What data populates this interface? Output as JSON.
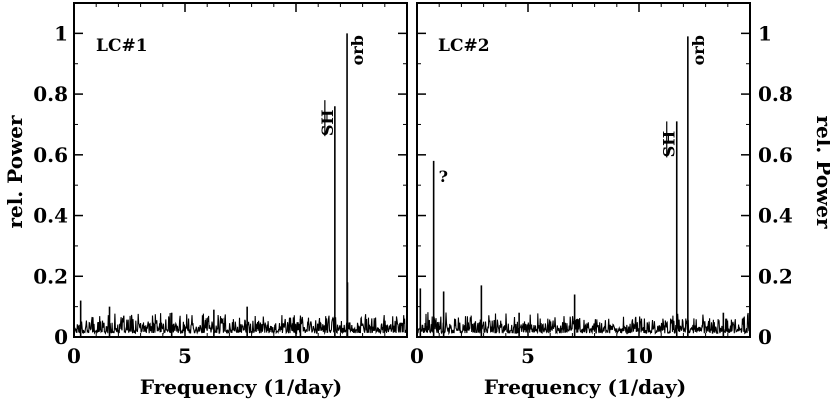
{
  "chart_data": [
    {
      "type": "line",
      "panel_label": "LC#1",
      "xlabel": "Frequency (1/day)",
      "ylabel": "rel. Power",
      "xlim": [
        0,
        15
      ],
      "ylim": [
        0,
        1.1
      ],
      "x_ticks": [
        "0",
        "5",
        "10"
      ],
      "y_ticks": [
        "0",
        "0.2",
        "0.4",
        "0.6",
        "0.8",
        "1"
      ],
      "noise_level": 0.05,
      "peaks": [
        {
          "x": 0.3,
          "y": 0.12
        },
        {
          "x": 1.6,
          "y": 0.1
        },
        {
          "x": 4.4,
          "y": 0.08
        },
        {
          "x": 6.3,
          "y": 0.09
        },
        {
          "x": 7.8,
          "y": 0.1
        },
        {
          "x": 10.2,
          "y": 0.06
        },
        {
          "x": 11.75,
          "y": 0.76
        },
        {
          "x": 12.3,
          "y": 1.0
        },
        {
          "x": 12.32,
          "y": 0.18
        }
      ],
      "annotations": [
        {
          "text": "SH",
          "x": 11.75,
          "y": 0.78
        },
        {
          "text": "orb",
          "x": 12.3,
          "y": 1.0
        }
      ]
    },
    {
      "type": "line",
      "panel_label": "LC#2",
      "xlabel": "Frequency (1/day)",
      "ylabel": "rel. Power",
      "xlim": [
        0,
        15
      ],
      "ylim": [
        0,
        1.1
      ],
      "x_ticks": [
        "0",
        "5",
        "10"
      ],
      "y_ticks": [
        "0",
        "0.2",
        "0.4",
        "0.6",
        "0.8",
        "1"
      ],
      "noise_level": 0.05,
      "peaks": [
        {
          "x": 0.15,
          "y": 0.16
        },
        {
          "x": 0.75,
          "y": 0.58
        },
        {
          "x": 1.2,
          "y": 0.15
        },
        {
          "x": 2.9,
          "y": 0.17
        },
        {
          "x": 4.6,
          "y": 0.08
        },
        {
          "x": 7.1,
          "y": 0.14
        },
        {
          "x": 11.7,
          "y": 0.71
        },
        {
          "x": 12.2,
          "y": 0.99
        },
        {
          "x": 13.8,
          "y": 0.08
        }
      ],
      "annotations": [
        {
          "text": "?",
          "x": 0.75,
          "y": 0.55
        },
        {
          "text": "SH",
          "x": 11.7,
          "y": 0.71
        },
        {
          "text": "orb",
          "x": 12.2,
          "y": 1.0
        }
      ]
    }
  ]
}
